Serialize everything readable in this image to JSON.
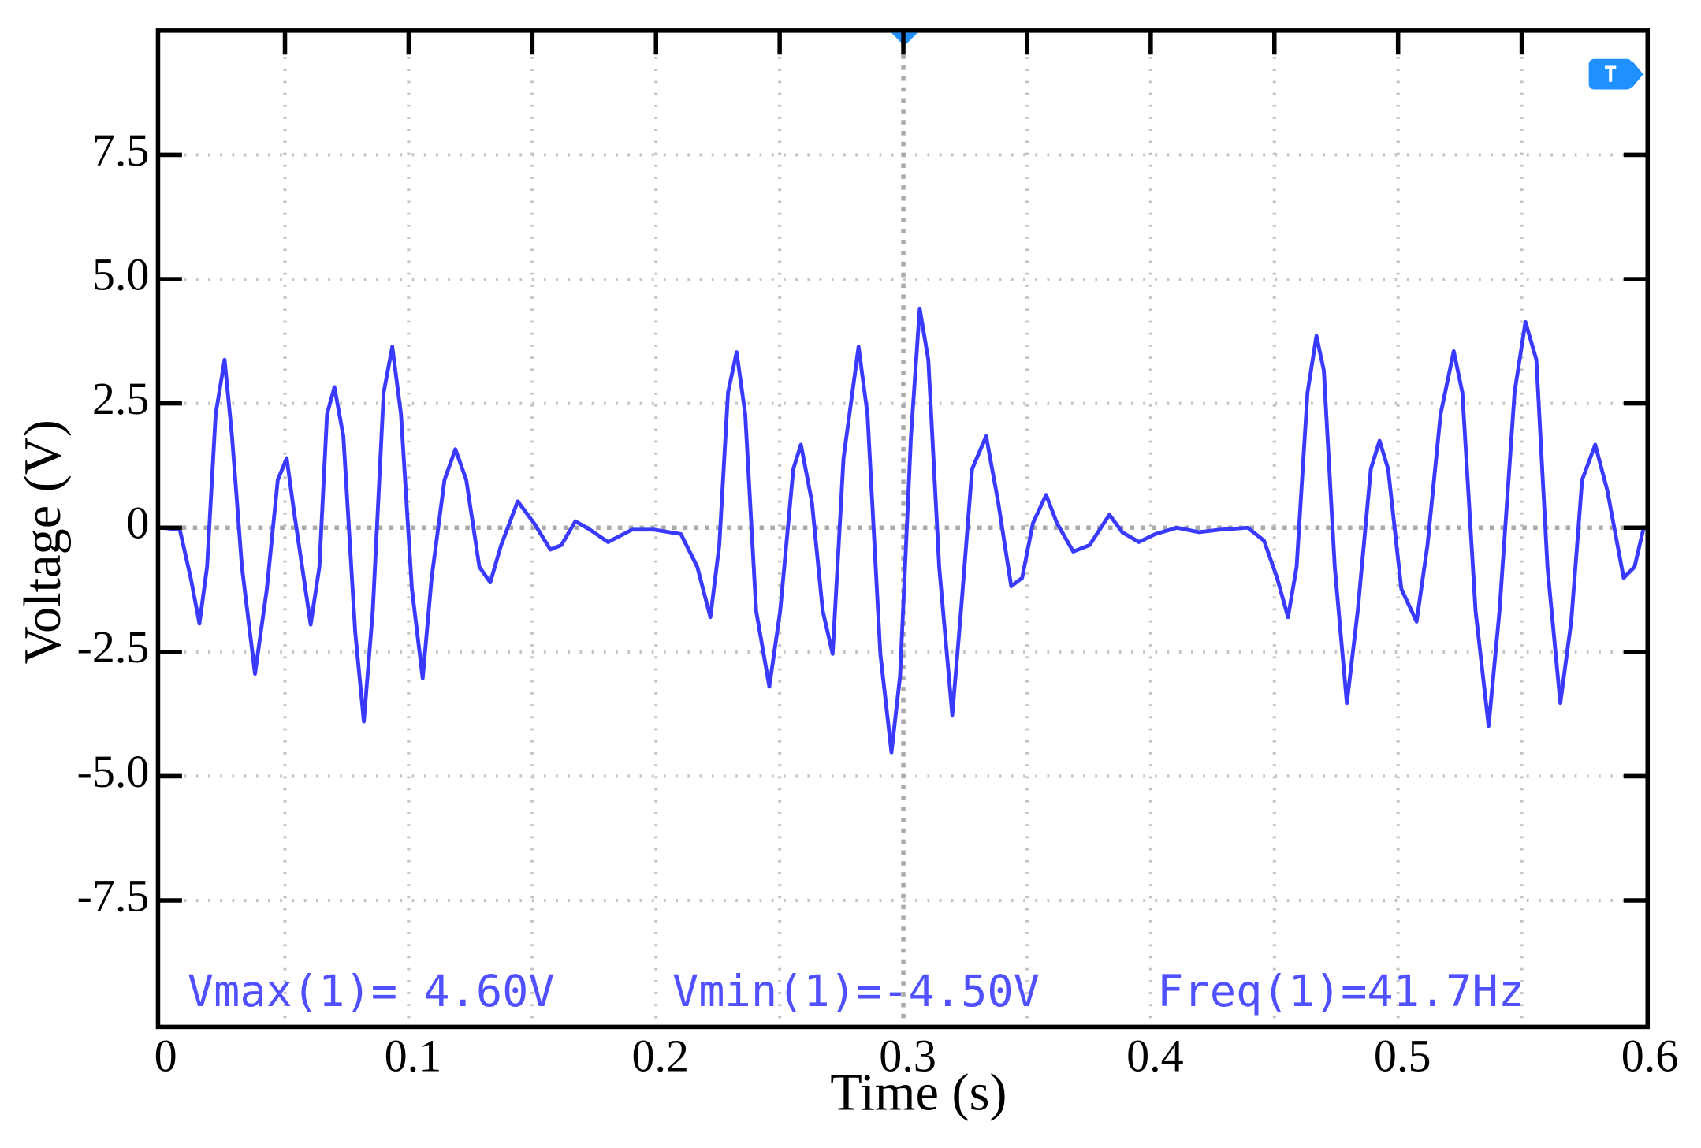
{
  "chart_data": {
    "type": "line",
    "x_label": "Time (s)",
    "y_label": "Voltage (V)",
    "annotations": [
      "Vmax(1)= 4.60V",
      "Vmin(1)=-4.50V",
      "Freq(1)=41.7Hz"
    ],
    "trigger_marker": "T",
    "xlim": [
      0,
      0.6
    ],
    "ylim": [
      -10,
      10
    ],
    "xticks": [
      0,
      0.1,
      0.2,
      0.3,
      0.4,
      0.5,
      0.6
    ],
    "xminorticks": [
      0.05,
      0.15,
      0.25,
      0.35,
      0.45,
      0.55
    ],
    "yticks": [
      -7.5,
      {
        "value": -5,
        "label": "-5.0"
      },
      -2.5,
      0,
      2.5,
      {
        "value": 5,
        "label": "5.0"
      },
      7.5
    ],
    "grid": true,
    "series": [
      {
        "color": "#3a3aff",
        "x": [
          0,
          0.0075,
          0.0119,
          0.0154,
          0.0185,
          0.022,
          0.0256,
          0.0286,
          0.0326,
          0.0379,
          0.0427,
          0.0471,
          0.0507,
          0.0537,
          0.0604,
          0.0639,
          0.067,
          0.07,
          0.0736,
          0.0784,
          0.0819,
          0.0855,
          0.0899,
          0.0934,
          0.0969,
          0.1013,
          0.1057,
          0.1093,
          0.1145,
          0.1189,
          0.1233,
          0.1286,
          0.133,
          0.1374,
          0.1441,
          0.1507,
          0.1573,
          0.1617,
          0.1674,
          0.1727,
          0.1806,
          0.1903,
          0.1991,
          0.2101,
          0.2167,
          0.222,
          0.2256,
          0.2291,
          0.2326,
          0.2361,
          0.2405,
          0.2458,
          0.2502,
          0.2555,
          0.2586,
          0.263,
          0.2674,
          0.2714,
          0.2758,
          0.2819,
          0.2855,
          0.2907,
          0.2952,
          0.2987,
          0.3031,
          0.3066,
          0.3101,
          0.3145,
          0.3198,
          0.3233,
          0.3278,
          0.3335,
          0.3383,
          0.3436,
          0.348,
          0.3524,
          0.3577,
          0.3621,
          0.3687,
          0.3753,
          0.3833,
          0.3885,
          0.3952,
          0.4018,
          0.4106,
          0.4194,
          0.4282,
          0.4392,
          0.4458,
          0.4511,
          0.4555,
          0.459,
          0.4634,
          0.467,
          0.47,
          0.4744,
          0.4793,
          0.4837,
          0.489,
          0.4925,
          0.496,
          0.5013,
          0.5075,
          0.5119,
          0.5172,
          0.5225,
          0.526,
          0.5313,
          0.5366,
          0.541,
          0.5471,
          0.5515,
          0.5559,
          0.5604,
          0.5656,
          0.57,
          0.5744,
          0.5797,
          0.5846,
          0.5912,
          0.5956,
          0.5991
        ],
        "values": [
          0,
          -0.04,
          -1.01,
          -1.93,
          -0.79,
          2.28,
          3.38,
          1.84,
          -0.79,
          -2.94,
          -1.23,
          0.96,
          1.4,
          0.31,
          -1.95,
          -0.79,
          2.28,
          2.83,
          1.84,
          -2.11,
          -3.9,
          -1.67,
          2.72,
          3.64,
          2.28,
          -1.23,
          -3.03,
          -1.01,
          0.96,
          1.58,
          0.96,
          -0.79,
          -1.1,
          -0.35,
          0.53,
          0.09,
          -0.44,
          -0.35,
          0.13,
          -0.02,
          -0.29,
          -0.04,
          -0.04,
          -0.13,
          -0.79,
          -1.8,
          -0.35,
          2.72,
          3.53,
          2.28,
          -1.67,
          -3.2,
          -1.67,
          1.18,
          1.67,
          0.53,
          -1.67,
          -2.54,
          1.4,
          3.64,
          2.28,
          -2.54,
          -4.52,
          -2.98,
          1.84,
          4.41,
          3.38,
          -0.79,
          -3.77,
          -1.67,
          1.18,
          1.84,
          0.53,
          -1.18,
          -1.01,
          0.09,
          0.66,
          0.09,
          -0.48,
          -0.35,
          0.26,
          -0.09,
          -0.29,
          -0.13,
          0,
          -0.09,
          -0.04,
          0,
          -0.26,
          -1.01,
          -1.8,
          -0.79,
          2.72,
          3.86,
          3.16,
          -0.79,
          -3.53,
          -1.67,
          1.18,
          1.75,
          1.18,
          -1.23,
          -1.89,
          -0.35,
          2.28,
          3.55,
          2.72,
          -1.67,
          -3.99,
          -1.67,
          2.72,
          4.14,
          3.38,
          -0.79,
          -3.53,
          -1.89,
          0.96,
          1.67,
          0.75,
          -1.01,
          -0.79,
          -0.04
        ]
      }
    ]
  }
}
